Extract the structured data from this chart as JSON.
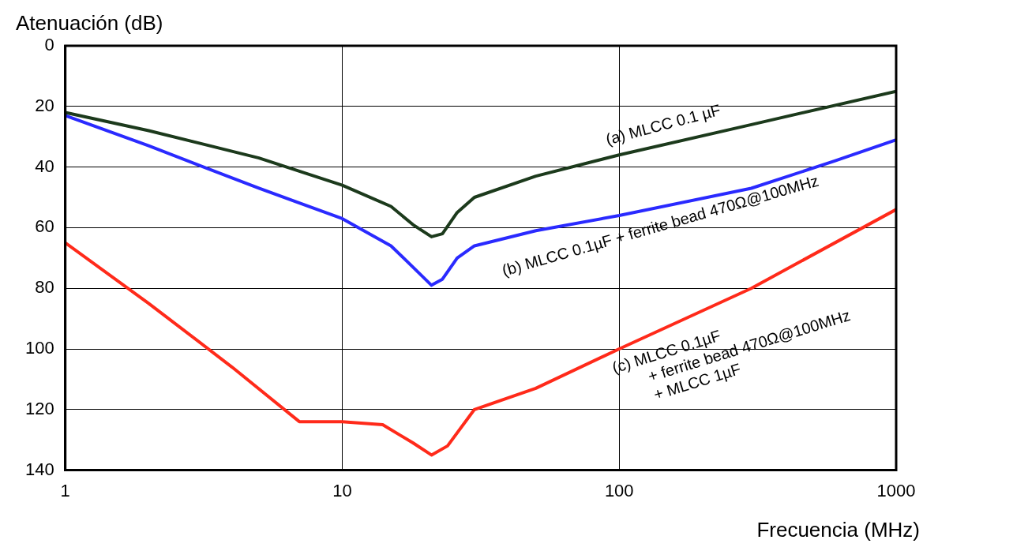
{
  "chart_data": {
    "type": "line",
    "xlabel": "Frecuencia (MHz)",
    "ylabel": "Atenuación (dB)",
    "log": "x",
    "xlim": [
      1,
      1000
    ],
    "xticks": [
      1,
      10,
      100,
      1000
    ],
    "ylim": [
      140,
      0
    ],
    "yticks": [
      0,
      20,
      40,
      60,
      80,
      100,
      120,
      140
    ],
    "grid": true,
    "legend": false,
    "marker": "none",
    "line_style": "solid",
    "series": [
      {
        "name": "(a) MLCC 0.1 µF",
        "color": "#1c3a1c",
        "x": [
          1,
          2,
          5,
          10,
          15,
          18,
          21,
          23,
          26,
          30,
          50,
          100,
          300,
          1000
        ],
        "values": [
          22,
          28,
          37,
          46,
          53,
          59,
          63,
          62,
          55,
          50,
          43,
          36,
          26,
          15
        ]
      },
      {
        "name": "(b) MLCC 0.1µF + ferrite bead 470Ω@100MHz",
        "color": "#2a2aff",
        "x": [
          1,
          2,
          5,
          10,
          15,
          18,
          21,
          23,
          26,
          30,
          50,
          100,
          300,
          600,
          1000
        ],
        "values": [
          23,
          33,
          47,
          57,
          66,
          73,
          79,
          77,
          70,
          66,
          61,
          56,
          47,
          38,
          31
        ]
      },
      {
        "name": "(c) MLCC 0.1µF\n+ ferrite bead 470Ω@100MHz\n+ MLCC 1µF",
        "color": "#ff2a1a",
        "x": [
          1,
          2,
          4,
          7,
          8,
          10,
          14,
          18,
          21,
          24,
          30,
          50,
          100,
          300,
          1000
        ],
        "values": [
          65,
          85,
          106,
          124,
          124,
          124,
          125,
          131,
          135,
          132,
          120,
          113,
          100,
          80,
          54
        ]
      }
    ]
  }
}
